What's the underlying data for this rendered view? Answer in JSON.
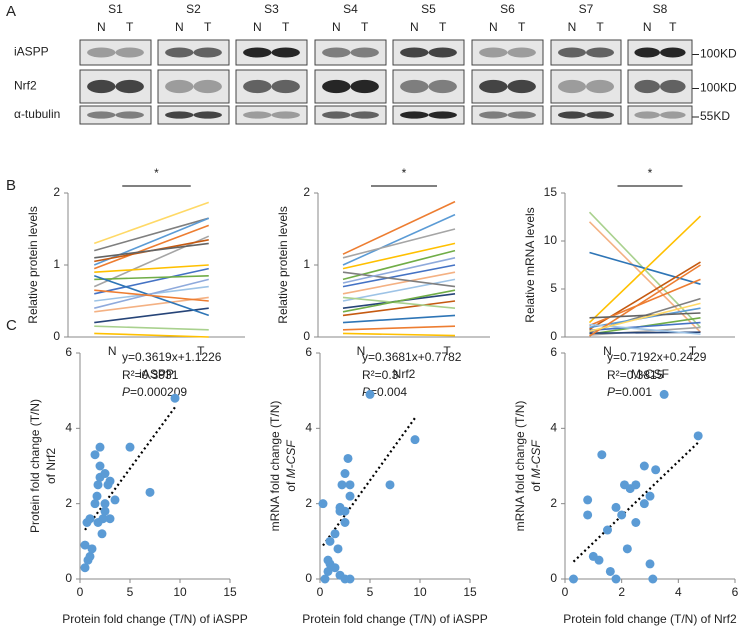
{
  "panel_labels": [
    "A",
    "B",
    "C"
  ],
  "blot": {
    "samples": [
      "S1",
      "S2",
      "S3",
      "S4",
      "S5",
      "S6",
      "S7",
      "S8"
    ],
    "lanes": [
      "N",
      "T"
    ],
    "rows": [
      "iASPP",
      "Nrf2",
      "α-tubulin"
    ],
    "markers": [
      "100KD",
      "100KD",
      "55KD"
    ]
  },
  "chart_data": [
    {
      "type": "paired",
      "ylabel": "Relative protein levels",
      "xlabel": "iASPP",
      "categories": [
        "N",
        "T"
      ],
      "significance": "*",
      "ylim": [
        0,
        2
      ],
      "yticks": [
        0,
        1,
        2
      ],
      "series": [
        {
          "color": "#ffd966",
          "values": [
            1.3,
            1.87
          ]
        },
        {
          "color": "#7f7f7f",
          "values": [
            1.2,
            1.65
          ]
        },
        {
          "color": "#5b9bd5",
          "values": [
            1.0,
            1.65
          ]
        },
        {
          "color": "#ed7d31",
          "values": [
            0.95,
            1.55
          ]
        },
        {
          "color": "#a5a5a5",
          "values": [
            0.7,
            1.4
          ]
        },
        {
          "color": "#c55a11",
          "values": [
            1.05,
            1.35
          ]
        },
        {
          "color": "#ffc000",
          "values": [
            0.9,
            1.0
          ]
        },
        {
          "color": "#4472c4",
          "values": [
            0.6,
            0.95
          ]
        },
        {
          "color": "#70ad47",
          "values": [
            0.8,
            0.85
          ]
        },
        {
          "color": "#9dc3e6",
          "values": [
            0.5,
            0.7
          ]
        },
        {
          "color": "#f4b183",
          "values": [
            0.35,
            0.55
          ]
        },
        {
          "color": "#264478",
          "values": [
            0.2,
            0.4
          ]
        },
        {
          "color": "#2e75b6",
          "values": [
            0.85,
            0.3
          ]
        },
        {
          "color": "#a9d18e",
          "values": [
            0.15,
            0.1
          ]
        },
        {
          "color": "#ffc000",
          "values": [
            0.05,
            0
          ]
        },
        {
          "color": "#636363",
          "values": [
            1.1,
            1.3
          ]
        },
        {
          "color": "#8faadc",
          "values": [
            0.4,
            0.8
          ]
        },
        {
          "color": "#ed7d31",
          "values": [
            0.65,
            0.5
          ]
        }
      ]
    },
    {
      "type": "paired",
      "ylabel": "Relative protein levels",
      "xlabel": "Nrf2",
      "categories": [
        "N",
        "T"
      ],
      "significance": "*",
      "ylim": [
        0,
        2
      ],
      "yticks": [
        0,
        1,
        2
      ],
      "series": [
        {
          "color": "#ed7d31",
          "values": [
            1.15,
            1.88
          ]
        },
        {
          "color": "#5b9bd5",
          "values": [
            1.0,
            1.7
          ]
        },
        {
          "color": "#a5a5a5",
          "values": [
            1.1,
            1.5
          ]
        },
        {
          "color": "#ffc000",
          "values": [
            0.95,
            1.3
          ]
        },
        {
          "color": "#70ad47",
          "values": [
            0.8,
            1.2
          ]
        },
        {
          "color": "#4472c4",
          "values": [
            0.7,
            1.0
          ]
        },
        {
          "color": "#f4b183",
          "values": [
            0.6,
            0.9
          ]
        },
        {
          "color": "#9dc3e6",
          "values": [
            0.5,
            0.8
          ]
        },
        {
          "color": "#264478",
          "values": [
            0.4,
            0.6
          ]
        },
        {
          "color": "#c55a11",
          "values": [
            0.3,
            0.5
          ]
        },
        {
          "color": "#a9d18e",
          "values": [
            0.55,
            0.4
          ]
        },
        {
          "color": "#2e75b6",
          "values": [
            0.2,
            0.3
          ]
        },
        {
          "color": "#ed7d31",
          "values": [
            0.1,
            0.15
          ]
        },
        {
          "color": "#ffc000",
          "values": [
            0.05,
            0.02
          ]
        },
        {
          "color": "#7f7f7f",
          "values": [
            0.9,
            0.7
          ]
        },
        {
          "color": "#8faadc",
          "values": [
            0.75,
            1.1
          ]
        },
        {
          "color": "#70ad47",
          "values": [
            0.35,
            0.65
          ]
        }
      ]
    },
    {
      "type": "paired",
      "ylabel": "Relative mRNA levels",
      "xlabel": "M-CSF",
      "categories": [
        "N",
        "T"
      ],
      "significance": "*",
      "ylim": [
        0,
        15
      ],
      "yticks": [
        0,
        5,
        10,
        15
      ],
      "series": [
        {
          "color": "#a9d18e",
          "values": [
            13,
            1
          ]
        },
        {
          "color": "#f4b183",
          "values": [
            12,
            0.5
          ]
        },
        {
          "color": "#2e75b6",
          "values": [
            8.8,
            5.5
          ]
        },
        {
          "color": "#ffc000",
          "values": [
            1.5,
            12.6
          ]
        },
        {
          "color": "#c55a11",
          "values": [
            0.8,
            7.8
          ]
        },
        {
          "color": "#ed7d31",
          "values": [
            1.2,
            6
          ]
        },
        {
          "color": "#7f7f7f",
          "values": [
            0.5,
            4
          ]
        },
        {
          "color": "#5b9bd5",
          "values": [
            1,
            3
          ]
        },
        {
          "color": "#70ad47",
          "values": [
            0.3,
            2
          ]
        },
        {
          "color": "#4472c4",
          "values": [
            0.7,
            1.5
          ]
        },
        {
          "color": "#a5a5a5",
          "values": [
            0.2,
            1
          ]
        },
        {
          "color": "#264478",
          "values": [
            0.4,
            0.5
          ]
        },
        {
          "color": "#9dc3e6",
          "values": [
            1.3,
            0.3
          ]
        },
        {
          "color": "#ed7d31",
          "values": [
            0.1,
            7.5
          ]
        },
        {
          "color": "#636363",
          "values": [
            2,
            2.5
          ]
        },
        {
          "color": "#ffd966",
          "values": [
            0.6,
            3.5
          ]
        }
      ]
    },
    {
      "type": "scatter",
      "xlabel": "Protein fold change (T/N) of iASPP",
      "ylabel": "Protein fold change (T/N)",
      "ylabel2": "of Nrf2",
      "equation": "y=0.3619x+1.1226",
      "r2": "R²=0.3931",
      "p_symbol": "P",
      "p_value": "=0.000209",
      "fit": {
        "slope": 0.3619,
        "intercept": 1.1226
      },
      "color": "#5b9bd5",
      "xlim": [
        0,
        15
      ],
      "xticks": [
        0,
        5,
        10,
        15
      ],
      "ylim": [
        0,
        6
      ],
      "yticks": [
        0,
        2,
        4,
        6
      ],
      "x": [
        0.5,
        0.8,
        1,
        0.5,
        0.7,
        1.5,
        1.8,
        2,
        2,
        2.5,
        1.5,
        2,
        2.5,
        3,
        3.5,
        2.2,
        1.8,
        2.3,
        5,
        7,
        9.5,
        1.2,
        2.8,
        1.7,
        3,
        2.5,
        1
      ],
      "values": [
        0.3,
        0.5,
        0.6,
        0.9,
        1.5,
        2,
        2.5,
        3,
        2.7,
        2.8,
        3.3,
        3.5,
        2,
        1.6,
        2.1,
        1.2,
        1.5,
        1.6,
        3.5,
        2.3,
        4.8,
        0.8,
        2.5,
        2.2,
        2.6,
        1.8,
        1.6
      ]
    },
    {
      "type": "scatter",
      "xlabel": "Protein fold change (T/N) of iASPP",
      "ylabel": "mRNA fold change (T/N)",
      "ylabel2": "of",
      "ylabel2_italic": "M-CSF",
      "equation": "y=0.3681x+0.7782",
      "r2": "R²=0.3",
      "p_symbol": "P",
      "p_value": "=0.004",
      "fit": {
        "slope": 0.3681,
        "intercept": 0.7782
      },
      "color": "#5b9bd5",
      "xlim": [
        0,
        15
      ],
      "xticks": [
        0,
        5,
        10,
        15
      ],
      "ylim": [
        0,
        6
      ],
      "yticks": [
        0,
        2,
        4,
        6
      ],
      "x": [
        0.5,
        0.8,
        1,
        1.5,
        2,
        2.5,
        3,
        1,
        1.5,
        2,
        2.5,
        2.2,
        2.5,
        2.8,
        3,
        2,
        1.8,
        5,
        7,
        9.5,
        0.3,
        2.5,
        3,
        0.8
      ],
      "values": [
        0,
        0.2,
        0.4,
        0.3,
        0.1,
        0,
        0,
        1,
        1.2,
        1.8,
        1.8,
        2.5,
        2.8,
        3.2,
        2.5,
        1.9,
        0.8,
        4.9,
        2.5,
        3.7,
        2,
        1.5,
        2.2,
        0.5
      ]
    },
    {
      "type": "scatter",
      "xlabel": "Protein fold change (T/N) of Nrf2",
      "ylabel": "mRNA fold change (T/N)",
      "ylabel2": "of",
      "ylabel2_italic": "M-CSF",
      "equation": "y=0.7192x+0.2429",
      "r2": "R²=0.3815",
      "p_symbol": "P",
      "p_value": "=0.001",
      "fit": {
        "slope": 0.7192,
        "intercept": 0.2429
      },
      "color": "#5b9bd5",
      "xlim": [
        0,
        6
      ],
      "xticks": [
        0,
        2,
        4,
        6
      ],
      "ylim": [
        0,
        6
      ],
      "yticks": [
        0,
        2,
        4,
        6
      ],
      "x": [
        0.3,
        0.8,
        0.8,
        1,
        1.2,
        1.3,
        1.5,
        1.6,
        1.8,
        2,
        2.1,
        2.3,
        2.5,
        2.5,
        2.8,
        2.8,
        3,
        3.2,
        3.5,
        3.1,
        4.7,
        2.2,
        1.8,
        3
      ],
      "values": [
        0,
        1.7,
        2.1,
        0.6,
        0.5,
        3.3,
        1.3,
        0.2,
        0,
        1.7,
        2.5,
        2.4,
        2.5,
        1.5,
        2,
        3,
        0.4,
        2.9,
        4.9,
        0,
        3.8,
        0.8,
        1.9,
        2.2
      ]
    }
  ]
}
